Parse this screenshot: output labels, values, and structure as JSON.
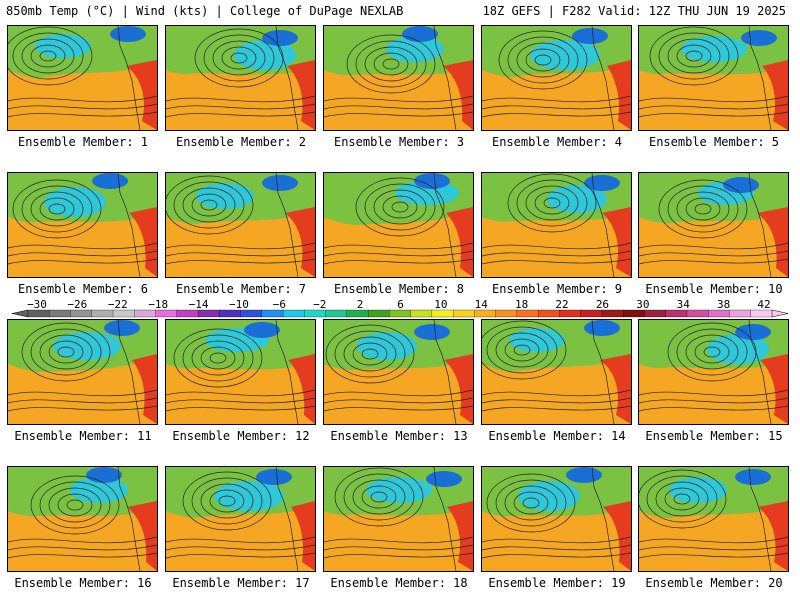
{
  "header": {
    "left": "850mb Temp (°C) | Wind (kts) | College of DuPage NEXLAB",
    "right": "18Z GEFS | F282 Valid: 12Z THU JUN 19 2025"
  },
  "members": [
    "Ensemble Member: 1",
    "Ensemble Member: 2",
    "Ensemble Member: 3",
    "Ensemble Member: 4",
    "Ensemble Member: 5",
    "Ensemble Member: 6",
    "Ensemble Member: 7",
    "Ensemble Member: 8",
    "Ensemble Member: 9",
    "Ensemble Member: 10",
    "Ensemble Member: 11",
    "Ensemble Member: 12",
    "Ensemble Member: 13",
    "Ensemble Member: 14",
    "Ensemble Member: 15",
    "Ensemble Member: 16",
    "Ensemble Member: 17",
    "Ensemble Member: 18",
    "Ensemble Member: 19",
    "Ensemble Member: 20"
  ],
  "colorbar": {
    "ticks": [
      "−30",
      "−26",
      "−22",
      "−18",
      "−14",
      "−10",
      "−6",
      "−2",
      "2",
      "6",
      "10",
      "14",
      "18",
      "22",
      "26",
      "30",
      "34",
      "38",
      "42"
    ],
    "colors": [
      "#606060",
      "#7a7a7a",
      "#949494",
      "#aeaeae",
      "#c8c8c8",
      "#d8a8d8",
      "#e070e0",
      "#c040c0",
      "#8030b0",
      "#5030c0",
      "#3050e0",
      "#2090f0",
      "#20c8f0",
      "#20d8c0",
      "#20c890",
      "#20b050",
      "#40a020",
      "#80c020",
      "#c8e020",
      "#f0f020",
      "#f8d020",
      "#f8b020",
      "#f89020",
      "#f87020",
      "#f05020",
      "#e03020",
      "#c82020",
      "#a01818",
      "#801010",
      "#a02040",
      "#c03070",
      "#d050a0",
      "#e070c8",
      "#f0a0e0",
      "#f8c8f0"
    ]
  },
  "panel_colors": {
    "warm": "#f5a623",
    "hot": "#e53b1f",
    "mid": "#7cc242",
    "cool": "#2ec8d8",
    "cold": "#1a6fd6"
  }
}
